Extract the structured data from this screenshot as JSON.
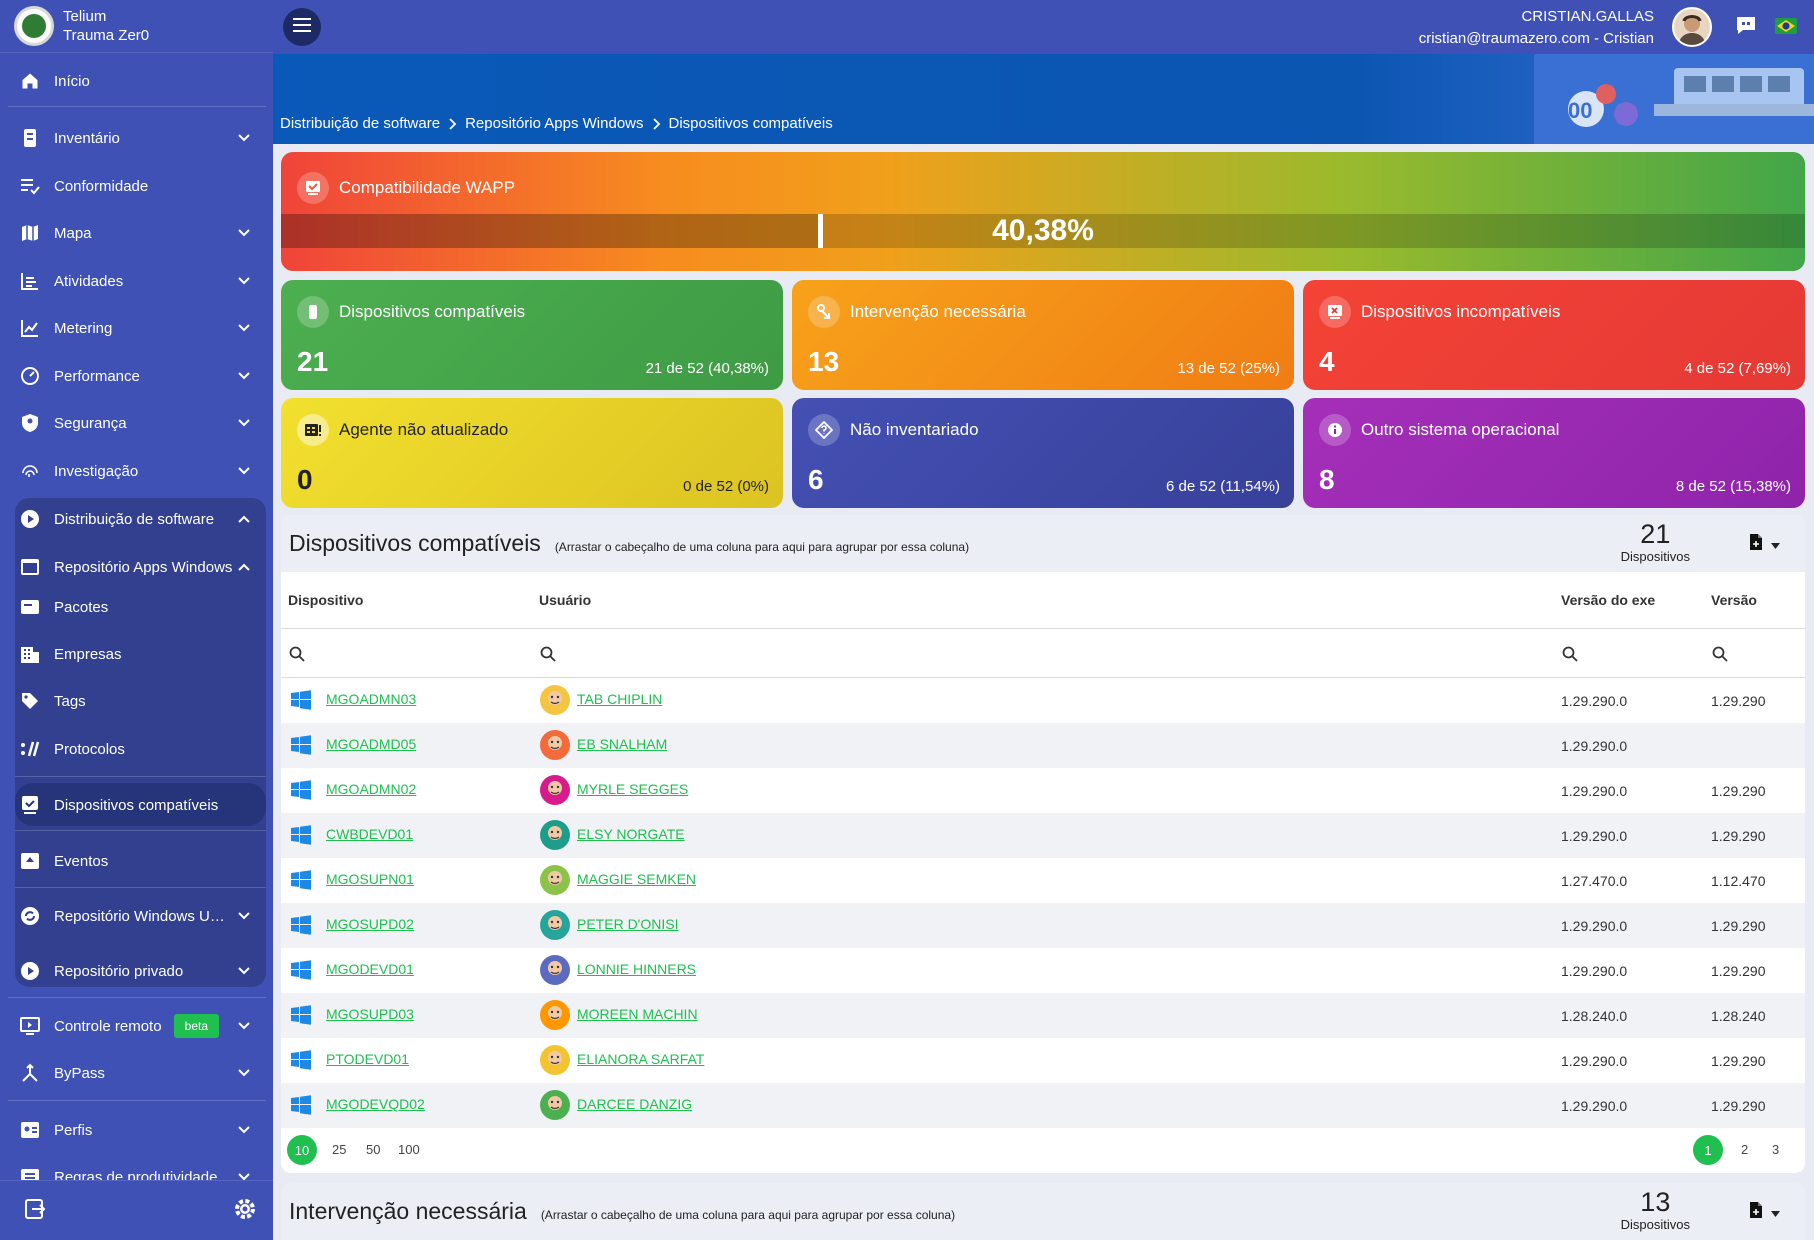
{
  "app": {
    "name_line1": "Telium",
    "name_line2": "Trauma Zer0"
  },
  "user": {
    "name": "CRISTIAN.GALLAS",
    "email": "cristian@traumazero.com - Cristian"
  },
  "sidebar": {
    "inicio": "Início",
    "inventario": "Inventário",
    "conformidade": "Conformidade",
    "mapa": "Mapa",
    "atividades": "Atividades",
    "metering": "Metering",
    "performance": "Performance",
    "seguranca": "Segurança",
    "investigacao": "Investigação",
    "distribuicao": "Distribuição de software",
    "repo_apps": "Repositório Apps Windows",
    "pacotes": "Pacotes",
    "empresas": "Empresas",
    "tags": "Tags",
    "protocolos": "Protocolos",
    "dispositivos_compativeis": "Dispositivos compatíveis",
    "eventos": "Eventos",
    "repo_windows_update": "Repositório Windows Update",
    "repo_privado": "Repositório privado",
    "controle_remoto": "Controle remoto",
    "beta": "beta",
    "bypass": "ByPass",
    "perfis": "Perfis",
    "regras": "Regras de produtividade"
  },
  "breadcrumb": [
    "Distribuição de software",
    "Repositório Apps Windows",
    "Dispositivos compatíveis"
  ],
  "wapp": {
    "title": "Compatibilidade WAPP",
    "percent_label": "40,38%",
    "fraction": 0.4038
  },
  "cards": {
    "compat": {
      "title": "Dispositivos compatíveis",
      "value": "21",
      "sub": "21 de 52 (40,38%)"
    },
    "intervencao": {
      "title": "Intervenção necessária",
      "value": "13",
      "sub": "13 de 52 (25%)"
    },
    "incompat": {
      "title": "Dispositivos incompatíveis",
      "value": "4",
      "sub": "4 de 52 (7,69%)"
    },
    "agente": {
      "title": "Agente não atualizado",
      "value": "0",
      "sub": "0 de 52 (0%)"
    },
    "nao_inv": {
      "title": "Não inventariado",
      "value": "6",
      "sub": "6 de 52 (11,54%)"
    },
    "outro": {
      "title": "Outro sistema operacional",
      "value": "8",
      "sub": "8 de 52 (15,38%)"
    }
  },
  "table1": {
    "title": "Dispositivos compatíveis",
    "hint": "(Arrastar o cabeçalho de uma coluna para aqui para agrupar por essa coluna)",
    "count": "21",
    "count_unit": "Dispositivos",
    "columns": [
      "Dispositivo",
      "Usuário",
      "Versão do exe",
      "Versão"
    ],
    "rows": [
      {
        "device": "MGOADMN03",
        "user": "TAB CHIPLIN",
        "exe": "1.29.290.0",
        "ver": "1.29.290",
        "avatar": "#f5c542"
      },
      {
        "device": "MGOADMD05",
        "user": "EB SNALHAM",
        "exe": "1.29.290.0",
        "ver": "",
        "avatar": "#f36a3b"
      },
      {
        "device": "MGOADMN02",
        "user": "MYRLE SEGGES",
        "exe": "1.29.290.0",
        "ver": "1.29.290",
        "avatar": "#d81b8c"
      },
      {
        "device": "CWBDEVD01",
        "user": "ELSY NORGATE",
        "exe": "1.29.290.0",
        "ver": "1.29.290",
        "avatar": "#1e9e8a"
      },
      {
        "device": "MGOSUPN01",
        "user": "MAGGIE SEMKEN",
        "exe": "1.27.470.0",
        "ver": "1.12.470",
        "avatar": "#8bc34a"
      },
      {
        "device": "MGOSUPD02",
        "user": "PETER D'ONISI",
        "exe": "1.29.290.0",
        "ver": "1.29.290",
        "avatar": "#26a69a"
      },
      {
        "device": "MGODEVD01",
        "user": "LONNIE HINNERS",
        "exe": "1.29.290.0",
        "ver": "1.29.290",
        "avatar": "#5c6bc0"
      },
      {
        "device": "MGOSUPD03",
        "user": "MOREEN MACHIN",
        "exe": "1.28.240.0",
        "ver": "1.28.240",
        "avatar": "#ff9800"
      },
      {
        "device": "PTODEVD01",
        "user": "ELIANORA SARFAT",
        "exe": "1.29.290.0",
        "ver": "1.29.290",
        "avatar": "#f4c430"
      },
      {
        "device": "MGODEVQD02",
        "user": "DARCEE DANZIG",
        "exe": "1.29.290.0",
        "ver": "1.29.290",
        "avatar": "#4caf50"
      }
    ],
    "page_sizes": [
      "10",
      "25",
      "50",
      "100"
    ],
    "pages": [
      "1",
      "2",
      "3"
    ]
  },
  "table2": {
    "title": "Intervenção necessária",
    "hint": "(Arrastar o cabeçalho de uma coluna para aqui para agrupar por essa coluna)",
    "count": "13",
    "count_unit": "Dispositivos"
  },
  "colors": {
    "accent_green": "#1fbf50",
    "sidebar": "#3f51b5",
    "card_green": "#43a047",
    "card_orange": "#f58f1c",
    "card_red": "#ef4136",
    "card_yellow": "#e8d322",
    "card_navy": "#3f4aa6",
    "card_purple": "#9b27b0"
  }
}
